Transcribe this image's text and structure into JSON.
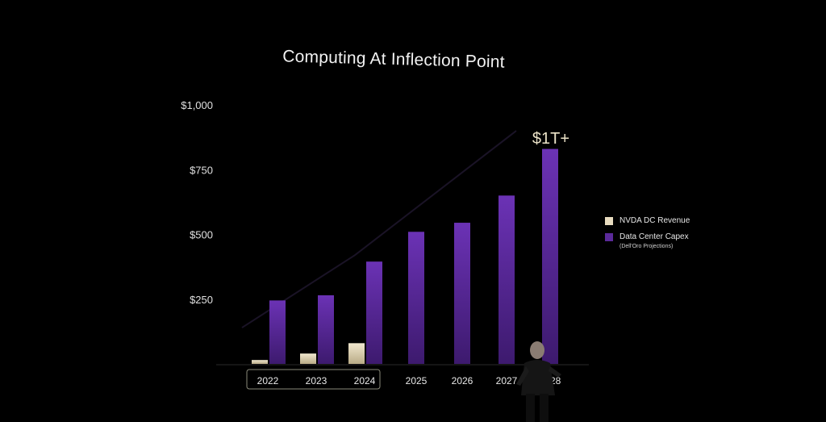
{
  "chart_data": {
    "type": "bar",
    "title": "Computing At Inflection Point",
    "categories": [
      "2022",
      "2023",
      "2024",
      "2025",
      "2026",
      "2027",
      "2028"
    ],
    "series": [
      {
        "name": "NVDA DC Revenue",
        "color": "#e8dcc0",
        "values": [
          15,
          40,
          80,
          null,
          null,
          null,
          null
        ]
      },
      {
        "name": "Data Center Capex",
        "color": "#5b2a9a",
        "values": [
          245,
          265,
          395,
          510,
          545,
          650,
          830
        ]
      }
    ],
    "yticks": [
      "$250",
      "$500",
      "$750",
      "$1,000"
    ],
    "ylim": [
      0,
      1000
    ],
    "annotation": "$1T+",
    "legend_note": "(Dell'Oro Projections)",
    "legend_position": "right",
    "grid": false
  }
}
